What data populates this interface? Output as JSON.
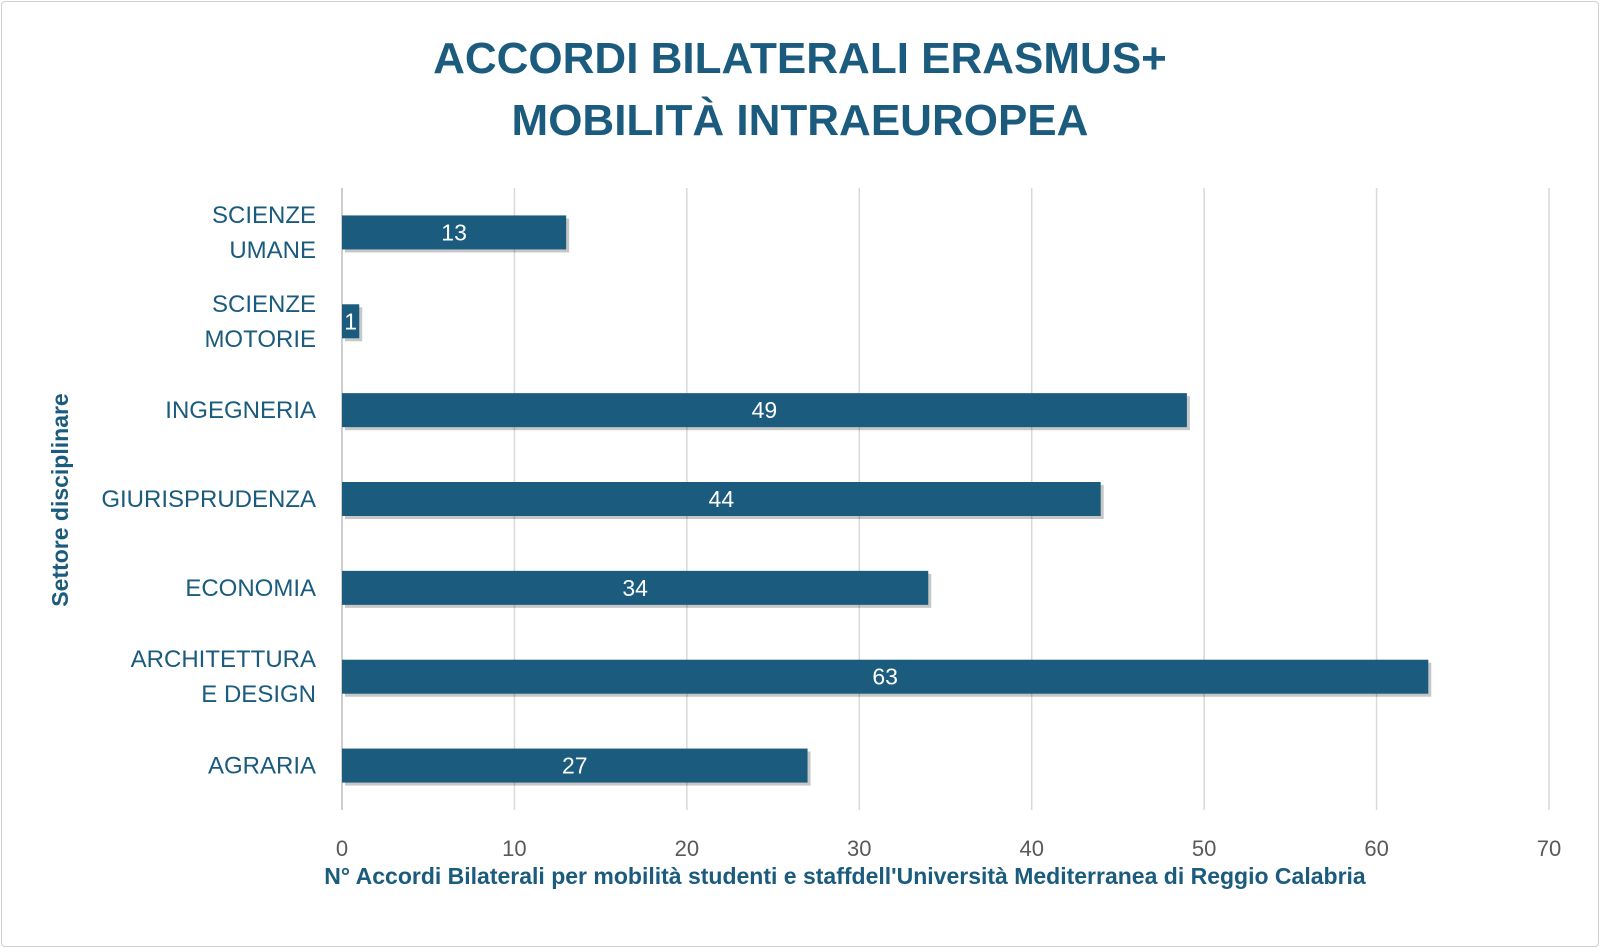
{
  "chart_data": {
    "type": "bar",
    "orientation": "horizontal",
    "title": [
      "ACCORDI BILATERALI ERASMUS+",
      "MOBILITÀ INTRAEUROPEA"
    ],
    "xlabel": "N° Accordi Bilaterali per mobilità studenti e staffdell'Università Mediterranea di Reggio Calabria",
    "ylabel": "Settore disciplinare",
    "categories": [
      [
        "SCIENZE",
        "UMANE"
      ],
      [
        "SCIENZE",
        "MOTORIE"
      ],
      [
        "INGEGNERIA"
      ],
      [
        "GIURISPRUDENZA"
      ],
      [
        "ECONOMIA"
      ],
      [
        "ARCHITETTURA",
        "E DESIGN"
      ],
      [
        "AGRARIA"
      ]
    ],
    "values": [
      13,
      1,
      49,
      44,
      34,
      63,
      27
    ],
    "xlim": [
      0,
      70
    ],
    "xticks": [
      0,
      10,
      20,
      30,
      40,
      50,
      60,
      70
    ],
    "grid": "vertical",
    "data_labels": true,
    "colors": {
      "bar": "#1a5b7e",
      "text": "#1a5b7e",
      "grid": "#d9d9d9",
      "tick": "#595959"
    }
  }
}
